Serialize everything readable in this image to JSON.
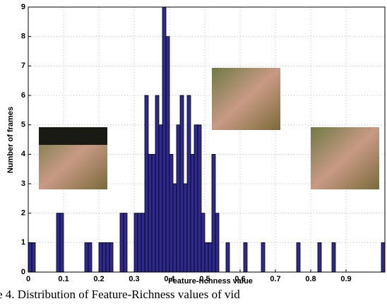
{
  "chart_data": {
    "type": "histogram",
    "xlabel": "Feature-richness value",
    "ylabel": "Number of frames",
    "caption": "e 4. Distribution of Feature-Richness values of vid",
    "bins": [
      0,
      0.01,
      0.02,
      0.03,
      0.04,
      0.05,
      0.06,
      0.07,
      0.08,
      0.09,
      0.1,
      0.11,
      0.12,
      0.13,
      0.14,
      0.15,
      0.16,
      0.17,
      0.18,
      0.19,
      0.2,
      0.21,
      0.22,
      0.23,
      0.24,
      0.25,
      0.26,
      0.27,
      0.28,
      0.29,
      0.3,
      0.31,
      0.32,
      0.33,
      0.34,
      0.35,
      0.36,
      0.37,
      0.38,
      0.39,
      0.4,
      0.41,
      0.42,
      0.43,
      0.44,
      0.45,
      0.46,
      0.47,
      0.48,
      0.49,
      0.5,
      0.51,
      0.52,
      0.53,
      0.54,
      0.55,
      0.56,
      0.57,
      0.58,
      0.59,
      0.6,
      0.61,
      0.62,
      0.63,
      0.64,
      0.65,
      0.66,
      0.67,
      0.68,
      0.69,
      0.7,
      0.71,
      0.72,
      0.73,
      0.74,
      0.75,
      0.76,
      0.77,
      0.78,
      0.79,
      0.8,
      0.81,
      0.82,
      0.83,
      0.84,
      0.85,
      0.86,
      0.87,
      0.88,
      0.89,
      0.9,
      0.91,
      0.92,
      0.93,
      0.94,
      0.95,
      0.96,
      0.97,
      0.98,
      0.99,
      1,
      1.01
    ],
    "values": [
      1,
      1,
      0,
      0,
      0,
      0,
      0,
      0,
      2,
      2,
      0,
      0,
      0,
      0,
      0,
      0,
      1,
      1,
      0,
      0,
      1,
      1,
      1,
      1,
      0,
      0,
      2,
      2,
      0,
      0,
      2,
      2,
      2,
      6,
      4,
      4,
      6,
      5,
      9,
      8,
      4,
      3,
      5,
      6,
      3,
      6,
      4,
      5,
      5,
      2,
      1,
      1,
      4,
      2,
      0,
      0,
      1,
      0,
      0,
      0,
      0,
      1,
      0,
      0,
      0,
      0,
      1,
      0,
      0,
      0,
      0,
      0,
      0,
      0,
      0,
      0,
      1,
      0,
      0,
      0,
      0,
      0,
      1,
      0,
      0,
      0,
      1,
      0,
      0,
      0,
      0,
      0,
      0,
      0,
      0,
      0,
      0,
      0,
      0,
      0,
      1
    ],
    "color": "#2e2a8f",
    "xlim": [
      0,
      1.01
    ],
    "ylim": [
      0,
      9
    ],
    "xticks": [
      0,
      0.1,
      0.2,
      0.3,
      0.4,
      0.5,
      0.6,
      0.7,
      0.8,
      0.9
    ],
    "yticks": [
      0,
      1,
      2,
      3,
      4,
      5,
      6,
      7,
      8,
      9
    ],
    "grid": true
  }
}
